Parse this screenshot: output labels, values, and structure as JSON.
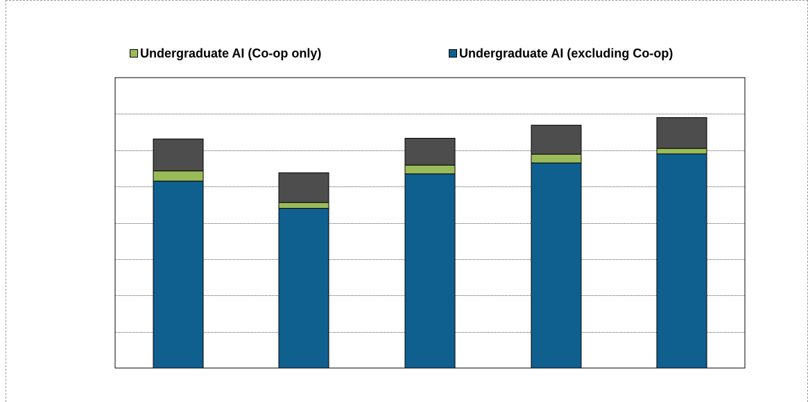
{
  "chart_data": {
    "type": "bar",
    "stacked": true,
    "title": "",
    "xlabel": "",
    "ylabel": "",
    "categories": [
      "",
      "",
      "",
      "",
      ""
    ],
    "ylim": [
      0,
      8
    ],
    "grid": true,
    "legend_position": "top",
    "series": [
      {
        "name": "Undergraduate AI (excluding Co-op)",
        "color": "#0f5f8f",
        "values": [
          5.15,
          4.4,
          5.35,
          5.65,
          5.9
        ]
      },
      {
        "name": "Undergraduate AI (Co-op only)",
        "color": "#9bbb59",
        "values": [
          0.28,
          0.16,
          0.24,
          0.24,
          0.15
        ]
      },
      {
        "color": "#4d4d4d",
        "values": [
          0.88,
          0.82,
          0.74,
          0.8,
          0.85
        ]
      }
    ],
    "legend": [
      {
        "label": "Undergraduate AI (Co-op only)",
        "color": "#9bbb59"
      },
      {
        "label": "Undergraduate AI (excluding Co-op)",
        "color": "#0f5f8f"
      }
    ]
  }
}
